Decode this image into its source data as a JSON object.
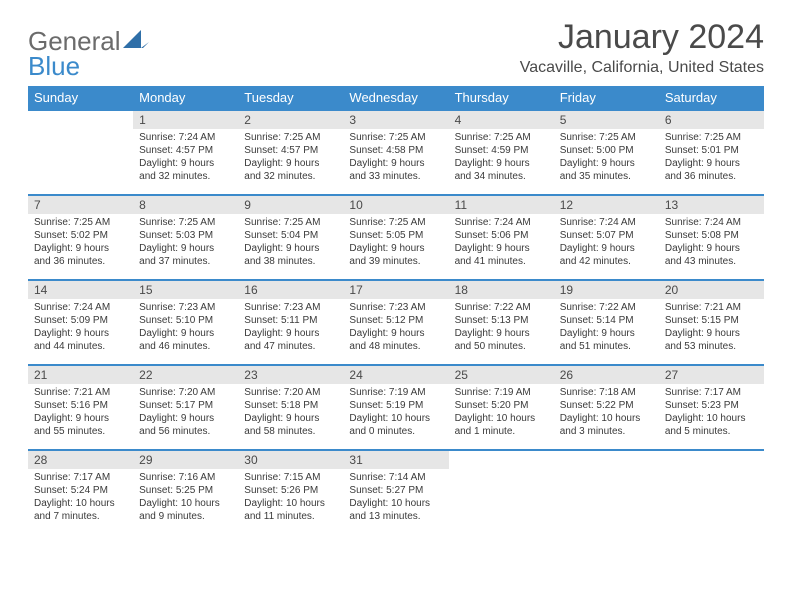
{
  "logo": {
    "general": "General",
    "blue": "Blue",
    "accent_color": "#3b8acb"
  },
  "title": "January 2024",
  "location": "Vacaville, California, United States",
  "header_bg": "#3b8acb",
  "header_text_color": "#ffffff",
  "daynum_bg": "#e6e6e6",
  "row_border_color": "#3b8acb",
  "text_color": "#4a4a4a",
  "day_headers": [
    "Sunday",
    "Monday",
    "Tuesday",
    "Wednesday",
    "Thursday",
    "Friday",
    "Saturday"
  ],
  "weeks": [
    [
      {
        "n": "",
        "sunrise": "",
        "sunset": "",
        "daylight": ""
      },
      {
        "n": "1",
        "sunrise": "Sunrise: 7:24 AM",
        "sunset": "Sunset: 4:57 PM",
        "daylight": "Daylight: 9 hours and 32 minutes."
      },
      {
        "n": "2",
        "sunrise": "Sunrise: 7:25 AM",
        "sunset": "Sunset: 4:57 PM",
        "daylight": "Daylight: 9 hours and 32 minutes."
      },
      {
        "n": "3",
        "sunrise": "Sunrise: 7:25 AM",
        "sunset": "Sunset: 4:58 PM",
        "daylight": "Daylight: 9 hours and 33 minutes."
      },
      {
        "n": "4",
        "sunrise": "Sunrise: 7:25 AM",
        "sunset": "Sunset: 4:59 PM",
        "daylight": "Daylight: 9 hours and 34 minutes."
      },
      {
        "n": "5",
        "sunrise": "Sunrise: 7:25 AM",
        "sunset": "Sunset: 5:00 PM",
        "daylight": "Daylight: 9 hours and 35 minutes."
      },
      {
        "n": "6",
        "sunrise": "Sunrise: 7:25 AM",
        "sunset": "Sunset: 5:01 PM",
        "daylight": "Daylight: 9 hours and 36 minutes."
      }
    ],
    [
      {
        "n": "7",
        "sunrise": "Sunrise: 7:25 AM",
        "sunset": "Sunset: 5:02 PM",
        "daylight": "Daylight: 9 hours and 36 minutes."
      },
      {
        "n": "8",
        "sunrise": "Sunrise: 7:25 AM",
        "sunset": "Sunset: 5:03 PM",
        "daylight": "Daylight: 9 hours and 37 minutes."
      },
      {
        "n": "9",
        "sunrise": "Sunrise: 7:25 AM",
        "sunset": "Sunset: 5:04 PM",
        "daylight": "Daylight: 9 hours and 38 minutes."
      },
      {
        "n": "10",
        "sunrise": "Sunrise: 7:25 AM",
        "sunset": "Sunset: 5:05 PM",
        "daylight": "Daylight: 9 hours and 39 minutes."
      },
      {
        "n": "11",
        "sunrise": "Sunrise: 7:24 AM",
        "sunset": "Sunset: 5:06 PM",
        "daylight": "Daylight: 9 hours and 41 minutes."
      },
      {
        "n": "12",
        "sunrise": "Sunrise: 7:24 AM",
        "sunset": "Sunset: 5:07 PM",
        "daylight": "Daylight: 9 hours and 42 minutes."
      },
      {
        "n": "13",
        "sunrise": "Sunrise: 7:24 AM",
        "sunset": "Sunset: 5:08 PM",
        "daylight": "Daylight: 9 hours and 43 minutes."
      }
    ],
    [
      {
        "n": "14",
        "sunrise": "Sunrise: 7:24 AM",
        "sunset": "Sunset: 5:09 PM",
        "daylight": "Daylight: 9 hours and 44 minutes."
      },
      {
        "n": "15",
        "sunrise": "Sunrise: 7:23 AM",
        "sunset": "Sunset: 5:10 PM",
        "daylight": "Daylight: 9 hours and 46 minutes."
      },
      {
        "n": "16",
        "sunrise": "Sunrise: 7:23 AM",
        "sunset": "Sunset: 5:11 PM",
        "daylight": "Daylight: 9 hours and 47 minutes."
      },
      {
        "n": "17",
        "sunrise": "Sunrise: 7:23 AM",
        "sunset": "Sunset: 5:12 PM",
        "daylight": "Daylight: 9 hours and 48 minutes."
      },
      {
        "n": "18",
        "sunrise": "Sunrise: 7:22 AM",
        "sunset": "Sunset: 5:13 PM",
        "daylight": "Daylight: 9 hours and 50 minutes."
      },
      {
        "n": "19",
        "sunrise": "Sunrise: 7:22 AM",
        "sunset": "Sunset: 5:14 PM",
        "daylight": "Daylight: 9 hours and 51 minutes."
      },
      {
        "n": "20",
        "sunrise": "Sunrise: 7:21 AM",
        "sunset": "Sunset: 5:15 PM",
        "daylight": "Daylight: 9 hours and 53 minutes."
      }
    ],
    [
      {
        "n": "21",
        "sunrise": "Sunrise: 7:21 AM",
        "sunset": "Sunset: 5:16 PM",
        "daylight": "Daylight: 9 hours and 55 minutes."
      },
      {
        "n": "22",
        "sunrise": "Sunrise: 7:20 AM",
        "sunset": "Sunset: 5:17 PM",
        "daylight": "Daylight: 9 hours and 56 minutes."
      },
      {
        "n": "23",
        "sunrise": "Sunrise: 7:20 AM",
        "sunset": "Sunset: 5:18 PM",
        "daylight": "Daylight: 9 hours and 58 minutes."
      },
      {
        "n": "24",
        "sunrise": "Sunrise: 7:19 AM",
        "sunset": "Sunset: 5:19 PM",
        "daylight": "Daylight: 10 hours and 0 minutes."
      },
      {
        "n": "25",
        "sunrise": "Sunrise: 7:19 AM",
        "sunset": "Sunset: 5:20 PM",
        "daylight": "Daylight: 10 hours and 1 minute."
      },
      {
        "n": "26",
        "sunrise": "Sunrise: 7:18 AM",
        "sunset": "Sunset: 5:22 PM",
        "daylight": "Daylight: 10 hours and 3 minutes."
      },
      {
        "n": "27",
        "sunrise": "Sunrise: 7:17 AM",
        "sunset": "Sunset: 5:23 PM",
        "daylight": "Daylight: 10 hours and 5 minutes."
      }
    ],
    [
      {
        "n": "28",
        "sunrise": "Sunrise: 7:17 AM",
        "sunset": "Sunset: 5:24 PM",
        "daylight": "Daylight: 10 hours and 7 minutes."
      },
      {
        "n": "29",
        "sunrise": "Sunrise: 7:16 AM",
        "sunset": "Sunset: 5:25 PM",
        "daylight": "Daylight: 10 hours and 9 minutes."
      },
      {
        "n": "30",
        "sunrise": "Sunrise: 7:15 AM",
        "sunset": "Sunset: 5:26 PM",
        "daylight": "Daylight: 10 hours and 11 minutes."
      },
      {
        "n": "31",
        "sunrise": "Sunrise: 7:14 AM",
        "sunset": "Sunset: 5:27 PM",
        "daylight": "Daylight: 10 hours and 13 minutes."
      },
      {
        "n": "",
        "sunrise": "",
        "sunset": "",
        "daylight": ""
      },
      {
        "n": "",
        "sunrise": "",
        "sunset": "",
        "daylight": ""
      },
      {
        "n": "",
        "sunrise": "",
        "sunset": "",
        "daylight": ""
      }
    ]
  ]
}
